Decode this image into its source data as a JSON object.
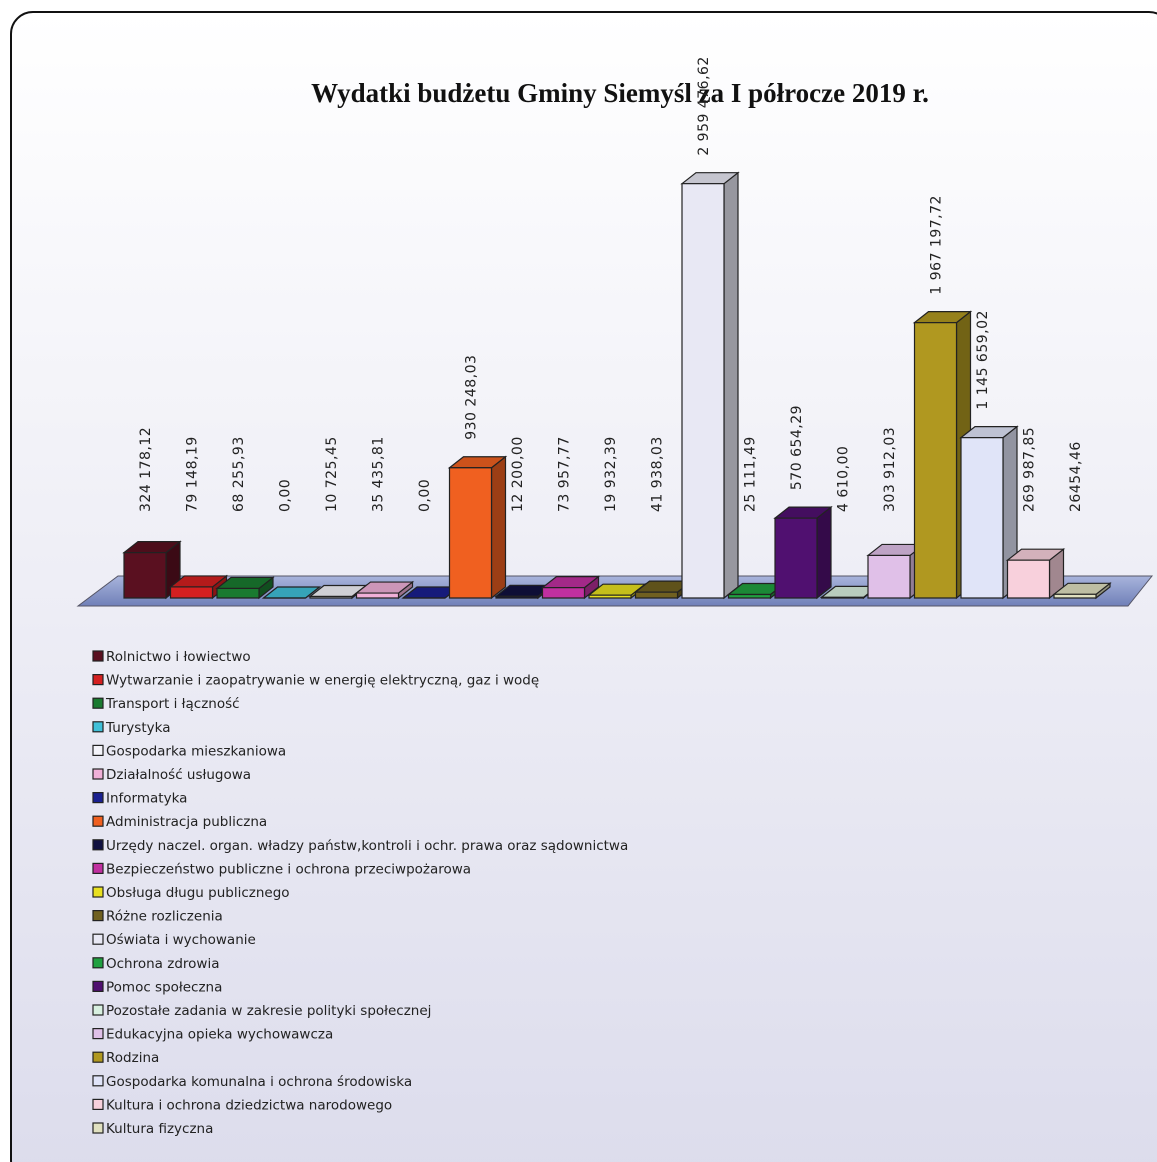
{
  "chart_data": {
    "type": "bar3d",
    "title": "Wydatki budżetu Gminy Siemyśl za I półrocze 2019 r.",
    "categories": [
      "Rolnictwo i łowiectwo",
      "Wytwarzanie  i zaopatrywanie w energię elektryczną, gaz i wodę",
      "Transport i łączność",
      "Turystyka",
      "Gospodarka mieszkaniowa",
      "Działalność usługowa",
      "Informatyka",
      "Administracja publiczna",
      "Urzędy naczel. organ. władzy państw,kontroli i ochr. prawa oraz sądownictwa",
      "Bezpieczeństwo publiczne i ochrona przeciwpożarowa",
      "Obsługa długu publicznego",
      "Różne rozliczenia",
      "Oświata i wychowanie",
      "Ochrona zdrowia",
      "Pomoc społeczna",
      "Pozostałe zadania w zakresie polityki społecznej",
      "Edukacyjna opieka wychowawcza",
      "Rodzina",
      "Gospodarka komunalna i ochrona środowiska",
      "Kultura i ochrona dziedzictwa narodowego",
      "Kultura fizyczna"
    ],
    "values": [
      324178.12,
      79148.19,
      68255.93,
      0,
      10725.45,
      35435.81,
      0,
      930248.03,
      12200,
      73957.77,
      19932.39,
      41938.03,
      2959476.62,
      25111.49,
      570654.29,
      4610,
      303912.03,
      1967197.72,
      1145659.02,
      269987.85,
      26454.46
    ],
    "value_labels": [
      "324 178,12",
      "79 148,19",
      "68 255,93",
      "0,00",
      "10 725,45",
      "35 435,81",
      "0,00",
      "930 248,03",
      "12 200,00",
      "73 957,77",
      "19 932,39",
      "41 938,03",
      "2 959 476,62",
      "25 111,49",
      "570 654,29",
      "4 610,00",
      "303 912,03",
      "1 967 197,72",
      "1 145 659,02",
      "269 987,85",
      "26454,46"
    ],
    "colors": [
      "#5a1020",
      "#d42020",
      "#1a7a30",
      "#40c0d8",
      "#f4f4fa",
      "#f0b0d8",
      "#1a2090",
      "#f06020",
      "#101040",
      "#c030a0",
      "#e8e020",
      "#706020",
      "#e8e8f4",
      "#20a040",
      "#501070",
      "#d8f0e0",
      "#e0c0e8",
      "#b09820",
      "#e0e4f8",
      "#f8d0dc",
      "#e0e0c0"
    ],
    "ylim": [
      0,
      3000000
    ]
  }
}
